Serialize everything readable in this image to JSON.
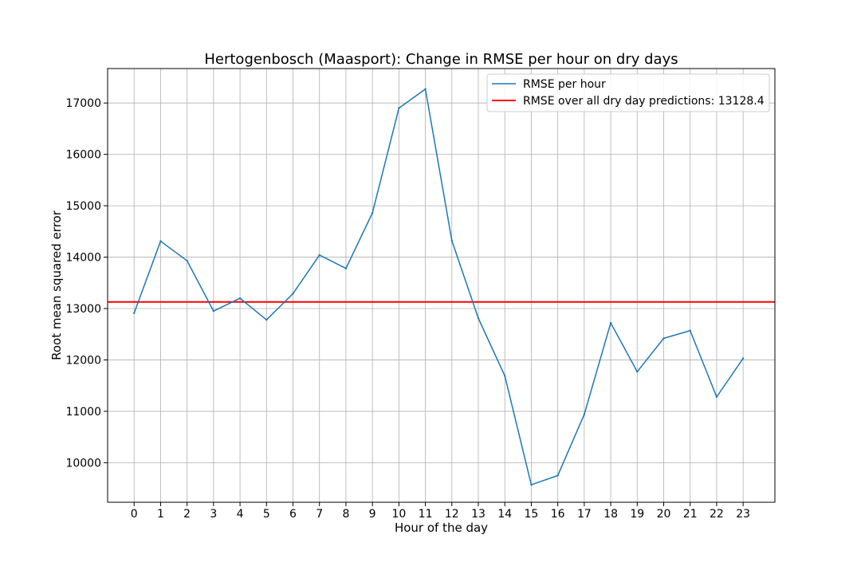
{
  "chart_data": {
    "type": "line",
    "title": "Hertogenbosch (Maasport): Change in RMSE per hour on dry days",
    "xlabel": "Hour of the day",
    "ylabel": "Root mean squared error",
    "x": [
      0,
      1,
      2,
      3,
      4,
      5,
      6,
      7,
      8,
      9,
      10,
      11,
      12,
      13,
      14,
      15,
      16,
      17,
      18,
      19,
      20,
      21,
      22,
      23
    ],
    "xlim": [
      -1.0,
      24.2
    ],
    "ylim": [
      9230,
      17670
    ],
    "yticks": [
      10000,
      11000,
      12000,
      13000,
      14000,
      15000,
      16000,
      17000
    ],
    "grid": true,
    "legend_position": "top-right",
    "series": [
      {
        "name": "RMSE per hour",
        "color": "#1f77b4",
        "values": [
          12910,
          14310,
          13930,
          12950,
          13200,
          12780,
          13290,
          14040,
          13780,
          14860,
          16900,
          17270,
          14320,
          12810,
          11690,
          9570,
          9750,
          10940,
          12720,
          11770,
          12420,
          12570,
          11280,
          12030
        ]
      }
    ],
    "reference_line": {
      "label": "RMSE over all dry day predictions: 13128.4",
      "value": 13128.4,
      "color": "#ff0000"
    }
  }
}
